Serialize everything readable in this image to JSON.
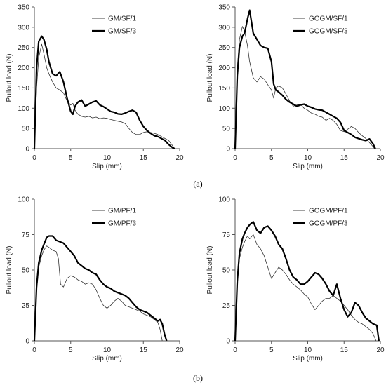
{
  "panel_labels": [
    "(a)",
    "(b)"
  ],
  "chart_data": [
    {
      "type": "line",
      "xlabel": "Slip (mm)",
      "ylabel": "Pullout load (N)",
      "xlim": [
        0,
        20
      ],
      "ylim": [
        0,
        350
      ],
      "xticks": [
        0,
        5,
        10,
        15,
        20
      ],
      "yticks": [
        0,
        50,
        100,
        150,
        200,
        250,
        300,
        350
      ],
      "legend": "top-right",
      "series": [
        {
          "name": "GM/SF/1",
          "style": "thin",
          "x": [
            0,
            0.3,
            0.6,
            1.0,
            1.3,
            1.7,
            2.0,
            2.5,
            3.0,
            3.5,
            4.0,
            4.5,
            5.0,
            5.3,
            5.6,
            6.0,
            6.5,
            7.0,
            7.5,
            8.0,
            8.5,
            9.0,
            9.5,
            10.0,
            10.5,
            11.0,
            11.5,
            12.0,
            12.5,
            13.0,
            13.5,
            14.0,
            14.5,
            15.0,
            15.5,
            16.0,
            16.5,
            17.0,
            17.5,
            18.0,
            18.5,
            19.0,
            19.3
          ],
          "y": [
            0,
            150,
            225,
            258,
            235,
            200,
            185,
            165,
            150,
            145,
            138,
            118,
            108,
            112,
            95,
            85,
            80,
            78,
            80,
            76,
            78,
            74,
            76,
            75,
            72,
            70,
            68,
            66,
            62,
            50,
            40,
            35,
            35,
            40,
            42,
            40,
            38,
            35,
            30,
            25,
            20,
            8,
            0
          ]
        },
        {
          "name": "GM/SF/3",
          "style": "thick",
          "x": [
            0,
            0.3,
            0.6,
            1.0,
            1.3,
            1.7,
            2.0,
            2.5,
            3.0,
            3.5,
            4.0,
            4.5,
            5.0,
            5.3,
            5.6,
            6.0,
            6.5,
            7.0,
            7.5,
            8.0,
            8.5,
            9.0,
            9.5,
            10.0,
            10.5,
            11.0,
            11.5,
            12.0,
            12.5,
            13.0,
            13.5,
            14.0,
            14.5,
            15.0,
            15.5,
            16.0,
            16.5,
            17.0,
            17.5,
            18.0,
            18.5,
            19.0,
            19.3
          ],
          "y": [
            0,
            200,
            265,
            278,
            270,
            245,
            215,
            185,
            180,
            190,
            165,
            125,
            92,
            85,
            105,
            115,
            120,
            105,
            110,
            115,
            118,
            108,
            104,
            98,
            92,
            90,
            86,
            85,
            88,
            92,
            95,
            90,
            70,
            55,
            45,
            38,
            32,
            30,
            25,
            20,
            10,
            3,
            0
          ]
        }
      ]
    },
    {
      "type": "line",
      "xlabel": "Slip (mm)",
      "ylabel": "Pullout load (N)",
      "xlim": [
        0,
        20
      ],
      "ylim": [
        0,
        350
      ],
      "xticks": [
        0,
        5,
        10,
        15,
        20
      ],
      "yticks": [
        0,
        50,
        100,
        150,
        200,
        250,
        300,
        350
      ],
      "legend": "top-right",
      "series": [
        {
          "name": "GOGM/SF/1",
          "style": "thin",
          "x": [
            0,
            0.3,
            0.6,
            1.0,
            1.3,
            1.7,
            2.0,
            2.5,
            3.0,
            3.5,
            4.0,
            4.5,
            5.0,
            5.3,
            5.6,
            6.0,
            6.5,
            7.0,
            7.5,
            8.0,
            8.5,
            9.0,
            9.5,
            10.0,
            10.5,
            11.0,
            11.5,
            12.0,
            12.5,
            13.0,
            13.5,
            14.0,
            14.5,
            15.0,
            15.5,
            16.0,
            16.5,
            17.0,
            17.5,
            18.0,
            18.5,
            19.0,
            19.2
          ],
          "y": [
            0,
            200,
            270,
            302,
            290,
            255,
            215,
            175,
            165,
            178,
            172,
            158,
            145,
            125,
            150,
            155,
            150,
            135,
            118,
            105,
            108,
            110,
            100,
            95,
            88,
            85,
            80,
            78,
            70,
            75,
            70,
            60,
            45,
            42,
            48,
            55,
            50,
            40,
            32,
            25,
            15,
            5,
            0
          ]
        },
        {
          "name": "GOGM/SF/3",
          "style": "thick",
          "x": [
            0,
            0.3,
            0.6,
            1.0,
            1.3,
            1.7,
            2.0,
            2.5,
            3.0,
            3.5,
            4.0,
            4.5,
            5.0,
            5.3,
            5.6,
            6.0,
            6.5,
            7.0,
            7.5,
            8.0,
            8.5,
            9.0,
            9.5,
            10.0,
            10.5,
            11.0,
            11.5,
            12.0,
            12.5,
            13.0,
            13.5,
            14.0,
            14.5,
            15.0,
            15.5,
            16.0,
            16.5,
            17.0,
            17.5,
            18.0,
            18.5,
            19.0,
            19.3
          ],
          "y": [
            0,
            180,
            250,
            278,
            285,
            320,
            342,
            285,
            270,
            255,
            250,
            248,
            215,
            160,
            145,
            140,
            132,
            122,
            115,
            110,
            105,
            108,
            110,
            105,
            102,
            98,
            96,
            95,
            90,
            85,
            80,
            75,
            65,
            45,
            40,
            35,
            28,
            25,
            22,
            20,
            24,
            12,
            0
          ]
        }
      ]
    },
    {
      "type": "line",
      "xlabel": "Slip (mm)",
      "ylabel": "Pullout load (N)",
      "xlim": [
        0,
        20
      ],
      "ylim": [
        0,
        100
      ],
      "xticks": [
        0,
        5,
        10,
        15,
        20
      ],
      "yticks": [
        0,
        25,
        50,
        75,
        100
      ],
      "legend": "top-right",
      "series": [
        {
          "name": "GM/PF/1",
          "style": "thin",
          "x": [
            0,
            0.3,
            0.6,
            1.0,
            1.3,
            1.7,
            2.0,
            2.5,
            3.0,
            3.3,
            3.6,
            4.0,
            4.5,
            5.0,
            5.5,
            6.0,
            6.5,
            7.0,
            7.5,
            8.0,
            8.5,
            9.0,
            9.5,
            10.0,
            10.5,
            11.0,
            11.5,
            12.0,
            12.5,
            13.0,
            13.5,
            14.0,
            14.5,
            15.0,
            15.5,
            16.0,
            16.5,
            17.0,
            17.3,
            17.6
          ],
          "y": [
            0,
            35,
            52,
            60,
            64,
            67,
            66,
            64,
            63,
            58,
            40,
            38,
            44,
            46,
            45,
            43,
            42,
            40,
            41,
            40,
            36,
            30,
            25,
            23,
            25,
            28,
            30,
            28,
            25,
            24,
            23,
            22,
            21,
            19,
            18,
            17,
            15,
            13,
            8,
            0
          ]
        },
        {
          "name": "GM/PF/3",
          "style": "thick",
          "x": [
            0,
            0.3,
            0.6,
            1.0,
            1.3,
            1.7,
            2.0,
            2.5,
            3.0,
            3.5,
            4.0,
            4.5,
            5.0,
            5.5,
            6.0,
            6.5,
            7.0,
            7.5,
            8.0,
            8.5,
            9.0,
            9.5,
            10.0,
            10.5,
            11.0,
            11.5,
            12.0,
            12.5,
            13.0,
            13.5,
            14.0,
            14.5,
            15.0,
            15.5,
            16.0,
            16.5,
            17.0,
            17.3,
            17.6,
            17.9,
            18.2
          ],
          "y": [
            0,
            38,
            55,
            64,
            68,
            73,
            74,
            74,
            71,
            70,
            69,
            66,
            63,
            60,
            55,
            53,
            51,
            50,
            48,
            47,
            43,
            40,
            38,
            37,
            35,
            34,
            33,
            32,
            30,
            27,
            24,
            22,
            21,
            20,
            18,
            16,
            14,
            15,
            12,
            5,
            0
          ]
        }
      ]
    },
    {
      "type": "line",
      "xlabel": "Slip (mm)",
      "ylabel": "Pullout load (N)",
      "xlim": [
        0,
        20
      ],
      "ylim": [
        0,
        100
      ],
      "xticks": [
        0,
        5,
        10,
        15,
        20
      ],
      "yticks": [
        0,
        25,
        50,
        75,
        100
      ],
      "legend": "top-right",
      "series": [
        {
          "name": "GOGM/PF/1",
          "style": "thin",
          "x": [
            0,
            0.3,
            0.6,
            1.0,
            1.3,
            1.7,
            2.0,
            2.5,
            3.0,
            3.5,
            4.0,
            4.5,
            5.0,
            5.5,
            6.0,
            6.5,
            7.0,
            7.5,
            8.0,
            8.5,
            9.0,
            9.5,
            10.0,
            10.5,
            11.0,
            11.5,
            12.0,
            12.5,
            13.0,
            13.5,
            14.0,
            14.5,
            15.0,
            15.5,
            16.0,
            16.5,
            17.0,
            17.5,
            18.0,
            18.5,
            19.0,
            19.4
          ],
          "y": [
            0,
            40,
            58,
            66,
            70,
            74,
            72,
            75,
            68,
            65,
            60,
            52,
            44,
            48,
            52,
            50,
            47,
            43,
            40,
            38,
            36,
            33,
            31,
            26,
            22,
            25,
            28,
            30,
            30,
            32,
            30,
            28,
            25,
            22,
            18,
            15,
            13,
            12,
            10,
            8,
            5,
            0
          ]
        },
        {
          "name": "GOGM/PF/3",
          "style": "thick",
          "x": [
            0,
            0.3,
            0.6,
            1.0,
            1.3,
            1.7,
            2.0,
            2.5,
            3.0,
            3.5,
            4.0,
            4.5,
            5.0,
            5.5,
            6.0,
            6.5,
            7.0,
            7.5,
            8.0,
            8.5,
            9.0,
            9.5,
            10.0,
            10.5,
            11.0,
            11.5,
            12.0,
            12.5,
            13.0,
            13.5,
            14.0,
            14.5,
            15.0,
            15.5,
            16.0,
            16.5,
            17.0,
            17.5,
            18.0,
            18.5,
            19.0,
            19.5,
            19.8
          ],
          "y": [
            0,
            42,
            62,
            72,
            76,
            80,
            82,
            84,
            78,
            76,
            80,
            81,
            78,
            74,
            68,
            65,
            58,
            50,
            45,
            43,
            40,
            40,
            42,
            45,
            48,
            47,
            44,
            40,
            35,
            32,
            40,
            30,
            22,
            17,
            20,
            27,
            25,
            20,
            16,
            14,
            12,
            11,
            0
          ]
        }
      ]
    }
  ]
}
